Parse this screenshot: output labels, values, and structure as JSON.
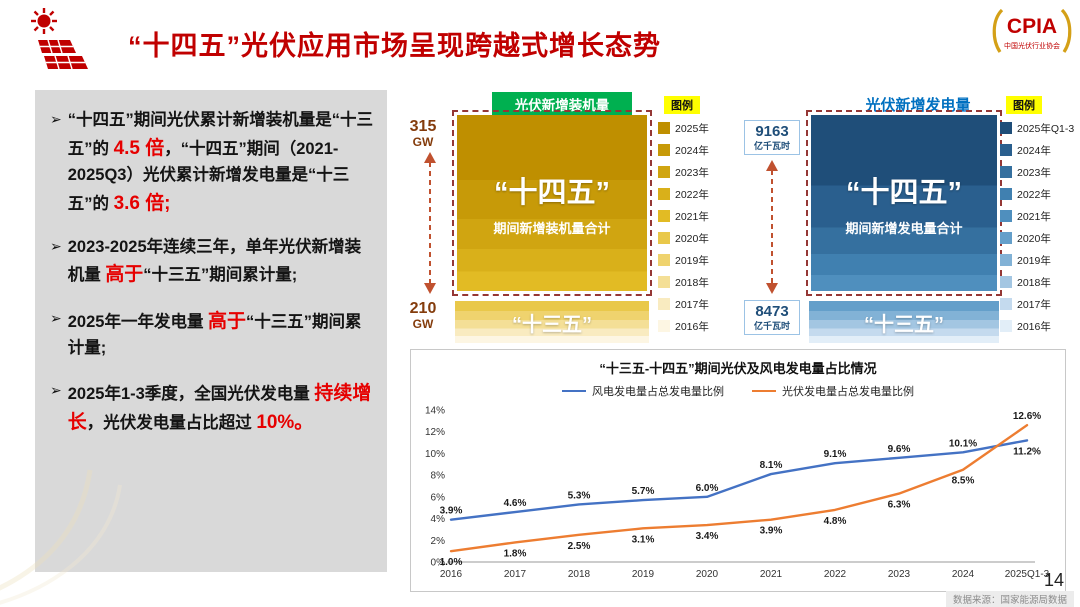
{
  "header": {
    "title": "“十四五”光伏应用市场呈现跨越式增长态势",
    "logo": {
      "text": "CPIA",
      "subtext": "中国光伏行业协会"
    }
  },
  "left_panel": {
    "marker": "➢",
    "bullets": [
      {
        "segments": [
          {
            "t": "“十四五”期间光伏累计新增装机量是“十三五”的 ",
            "red": false,
            "big": false
          },
          {
            "t": "4.5 倍",
            "red": true,
            "big": true
          },
          {
            "t": "，“十四五”期间（2021-2025Q3）光伏累计新增发电量是“十三五”的 ",
            "red": false,
            "big": false
          },
          {
            "t": "3.6 倍;",
            "red": true,
            "big": true
          }
        ]
      },
      {
        "segments": [
          {
            "t": "2023-2025年连续三年，单年光伏新增装机量 ",
            "red": false,
            "big": false
          },
          {
            "t": "高于",
            "red": true,
            "big": true
          },
          {
            "t": "“十三五”期间累计量;",
            "red": false,
            "big": false
          }
        ]
      },
      {
        "segments": [
          {
            "t": "2025年一年发电量 ",
            "red": false,
            "big": false
          },
          {
            "t": "高于",
            "red": true,
            "big": true
          },
          {
            "t": "“十三五”期间累计量;",
            "red": false,
            "big": false
          }
        ]
      },
      {
        "segments": [
          {
            "t": "2025年1-3季度，全国光伏发电量 ",
            "red": false,
            "big": false
          },
          {
            "t": "持续增长",
            "red": true,
            "big": true
          },
          {
            "t": "，光伏发电量占比超过 ",
            "red": false,
            "big": false
          },
          {
            "t": "10%。",
            "red": true,
            "big": true
          }
        ]
      }
    ]
  },
  "chart_data": [
    {
      "id": "pv_new_installed_capacity",
      "type": "bar",
      "title": "光伏新增装机量",
      "top_label": {
        "value": "315",
        "unit": "GW"
      },
      "bottom_label": {
        "value": "210",
        "unit": "GW"
      },
      "main_bar": {
        "label": "“十四五”",
        "sublabel": "期间新增装机量合计"
      },
      "secondary_bar": {
        "label": "“十三五”"
      },
      "legend_title": "图例",
      "legend": [
        {
          "label": "2025年",
          "color": "#BF8F00"
        },
        {
          "label": "2024年",
          "color": "#C79A08"
        },
        {
          "label": "2023年",
          "color": "#D0A511"
        },
        {
          "label": "2022年",
          "color": "#D9B01A"
        },
        {
          "label": "2021年",
          "color": "#E2BB24"
        },
        {
          "label": "2020年",
          "color": "#E9C84A"
        },
        {
          "label": "2019年",
          "color": "#EFD36E"
        },
        {
          "label": "2018年",
          "color": "#F4DF96"
        },
        {
          "label": "2017年",
          "color": "#F9EBC0"
        },
        {
          "label": "2016年",
          "color": "#FDF6E3"
        }
      ],
      "main_weights": [
        37,
        22,
        17,
        13,
        11
      ],
      "secondary_weights": [
        24,
        21,
        20,
        18,
        17
      ]
    },
    {
      "id": "pv_new_generation",
      "type": "bar",
      "title": "光伏新增发电量",
      "top_label": {
        "value": "9163",
        "unit": "亿千瓦时"
      },
      "bottom_label": {
        "value": "8473",
        "unit": "亿千瓦时"
      },
      "main_bar": {
        "label": "“十四五”",
        "sublabel": "期间新增发电量合计"
      },
      "secondary_bar": {
        "label": "“十三五”"
      },
      "legend_title": "图例",
      "legend": [
        {
          "label": "2025年Q1-3",
          "color": "#1F4E79"
        },
        {
          "label": "2024年",
          "color": "#2A5F8E"
        },
        {
          "label": "2023年",
          "color": "#35709F"
        },
        {
          "label": "2022年",
          "color": "#4080B0"
        },
        {
          "label": "2021年",
          "color": "#4F8FBE"
        },
        {
          "label": "2020年",
          "color": "#649FCA"
        },
        {
          "label": "2019年",
          "color": "#82B2D6"
        },
        {
          "label": "2018年",
          "color": "#A3C6E2"
        },
        {
          "label": "2017年",
          "color": "#C4DAEE"
        },
        {
          "label": "2016年",
          "color": "#E2EEF8"
        }
      ],
      "main_weights": [
        40,
        24,
        15,
        12,
        9
      ],
      "secondary_weights": [
        24,
        21,
        20,
        18,
        17
      ]
    },
    {
      "id": "generation_share_ratio",
      "type": "line",
      "title": "“十三五-十四五”期间光伏及风电发电量占比情况",
      "x": [
        "2016",
        "2017",
        "2018",
        "2019",
        "2020",
        "2021",
        "2022",
        "2023",
        "2024",
        "2025Q1-3"
      ],
      "series": [
        {
          "name": "风电发电量占总发电量比例",
          "color": "#4472C4",
          "values": [
            3.9,
            4.6,
            5.3,
            5.7,
            6.0,
            8.1,
            9.1,
            9.6,
            10.1,
            11.2
          ],
          "label_side": "above",
          "last_label_side": "below"
        },
        {
          "name": "光伏发电量占总发电量比例",
          "color": "#ED7D31",
          "values": [
            1.0,
            1.8,
            2.5,
            3.1,
            3.4,
            3.9,
            4.8,
            6.3,
            8.5,
            12.6
          ],
          "label_side": "below",
          "last_label_side": "above"
        }
      ],
      "ylim": [
        0,
        14
      ],
      "ytick_step": 2,
      "tick_suffix": "%",
      "grid": false,
      "legend_position": "top"
    }
  ],
  "footer": {
    "source": "数据来源：国家能源局数据",
    "page": "14"
  }
}
